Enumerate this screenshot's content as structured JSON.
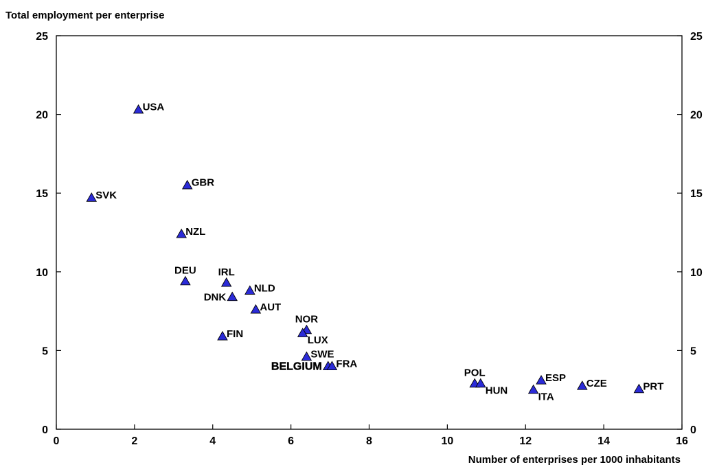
{
  "chart_data": {
    "type": "scatter",
    "title": "",
    "ylabel": "Total employment per enterprise",
    "xlabel": "Number of enterprises per 1000 inhabitants",
    "xlim": [
      0,
      16
    ],
    "ylim": [
      0,
      25
    ],
    "xticks": [
      "0",
      "2",
      "4",
      "6",
      "8",
      "10",
      "12",
      "14",
      "16"
    ],
    "yticks": [
      "0",
      "5",
      "10",
      "15",
      "20",
      "25"
    ],
    "grid": false,
    "marker": "triangle",
    "marker_color": "#2b2bd8",
    "points": [
      {
        "label": "USA",
        "x": 2.1,
        "y": 20.3,
        "label_pos": "right"
      },
      {
        "label": "GBR",
        "x": 3.35,
        "y": 15.5,
        "label_pos": "right"
      },
      {
        "label": "SVK",
        "x": 0.9,
        "y": 14.7,
        "label_pos": "right"
      },
      {
        "label": "NZL",
        "x": 3.2,
        "y": 12.4,
        "label_pos": "right"
      },
      {
        "label": "DEU",
        "x": 3.3,
        "y": 9.4,
        "label_pos": "above"
      },
      {
        "label": "IRL",
        "x": 4.35,
        "y": 9.3,
        "label_pos": "above"
      },
      {
        "label": "NLD",
        "x": 4.95,
        "y": 8.8,
        "label_pos": "right"
      },
      {
        "label": "DNK",
        "x": 4.5,
        "y": 8.4,
        "label_pos": "left"
      },
      {
        "label": "AUT",
        "x": 5.1,
        "y": 7.6,
        "label_pos": "right"
      },
      {
        "label": "NOR",
        "x": 6.4,
        "y": 6.3,
        "label_pos": "above"
      },
      {
        "label": "LUX",
        "x": 6.3,
        "y": 6.1,
        "label_pos": "below-right"
      },
      {
        "label": "FIN",
        "x": 4.25,
        "y": 5.9,
        "label_pos": "right"
      },
      {
        "label": "SWE",
        "x": 6.4,
        "y": 4.6,
        "label_pos": "right"
      },
      {
        "label": "BELGIUM",
        "x": 6.95,
        "y": 4.0,
        "label_pos": "left",
        "highlight": true
      },
      {
        "label": "FRA",
        "x": 7.05,
        "y": 4.0,
        "label_pos": "right"
      },
      {
        "label": "POL",
        "x": 10.7,
        "y": 2.9,
        "label_pos": "above"
      },
      {
        "label": "HUN",
        "x": 10.85,
        "y": 2.9,
        "label_pos": "below-right"
      },
      {
        "label": "ESP",
        "x": 12.4,
        "y": 3.1,
        "label_pos": "right"
      },
      {
        "label": "ITA",
        "x": 12.2,
        "y": 2.5,
        "label_pos": "below-right"
      },
      {
        "label": "CZE",
        "x": 13.45,
        "y": 2.75,
        "label_pos": "right"
      },
      {
        "label": "PRT",
        "x": 14.9,
        "y": 2.55,
        "label_pos": "right"
      }
    ]
  }
}
